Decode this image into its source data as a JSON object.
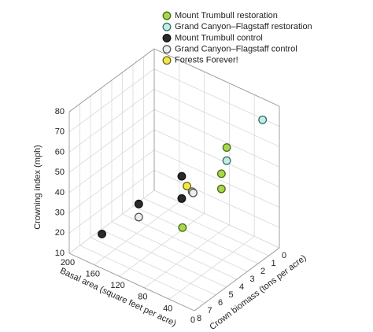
{
  "chart_data": {
    "type": "scatter3d",
    "xlabel": "Basal area (square feet per acre)",
    "ylabel": "Crown biomass (tons per acre)",
    "zlabel": "Crowning index (mph)",
    "xlim": [
      0,
      200
    ],
    "xticks": [
      0,
      40,
      80,
      120,
      160,
      200
    ],
    "ylim": [
      0,
      8
    ],
    "yticks": [
      0,
      1,
      2,
      3,
      4,
      5,
      6,
      7,
      8
    ],
    "zlim": [
      10,
      80
    ],
    "zticks": [
      10,
      20,
      30,
      40,
      50,
      60,
      70,
      80
    ],
    "grid": true,
    "series": [
      {
        "name": "Mount Trumbull restoration",
        "color": "#a6d84a",
        "edge": "#4a6a1a",
        "x": [
          70,
          40,
          40,
          40
        ],
        "y": [
          5.0,
          3.1,
          3.1,
          2.6
        ],
        "z": [
          29.5,
          45.5,
          53,
          64
        ]
      },
      {
        "name": "Grand Canyon–Flagstaff restoration",
        "color": "#c4ece4",
        "edge": "#2f6f68",
        "x": [
          40,
          20
        ],
        "y": [
          2.6,
          0.4
        ],
        "z": [
          57.5,
          72
        ]
      },
      {
        "name": "Mount Trumbull control",
        "color": "#2a2a2a",
        "edge": "#111111",
        "x": [
          180,
          150,
          100,
          100
        ],
        "y": [
          6.1,
          4.4,
          3.3,
          3.3
        ],
        "z": [
          15,
          27.5,
          44,
          33
        ]
      },
      {
        "name": "Grand Canyon–Flagstaff control",
        "color": "#eeeeee",
        "edge": "#555555",
        "x": [
          150,
          80,
          80
        ],
        "y": [
          4.4,
          3.5,
          3.4
        ],
        "z": [
          21,
          40,
          39
        ]
      },
      {
        "name": "Forests Forever!",
        "color": "#f2e84a",
        "edge": "#6a6410",
        "x": [
          90
        ],
        "y": [
          3.4
        ],
        "z": [
          41
        ]
      }
    ]
  }
}
